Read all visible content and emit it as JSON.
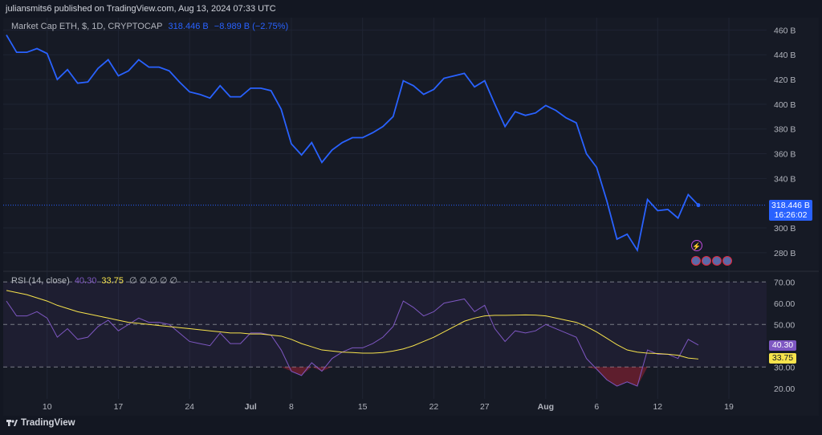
{
  "header": {
    "published": "juliansmits6 published on TradingView.com, Aug 13, 2024 07:33 UTC"
  },
  "legend": {
    "title": "Market Cap ETH, $, 1D, CRYPTOCAP",
    "value": "318.446 B",
    "change": "−8.989 B (−2.75%)"
  },
  "rsi_legend": {
    "title": "RSI (14, close)",
    "rsi": "40.30",
    "ma": "33.75",
    "na": "∅ ∅ ∅ ∅ ∅"
  },
  "price_tag": {
    "value": "318.446 B",
    "countdown": "16:26:02"
  },
  "rsi_tags": {
    "rsi": "40.30",
    "ma": "33.75"
  },
  "footer": {
    "brand": "TradingView"
  },
  "colors": {
    "price": "#2962ff",
    "rsi": "#7e57c2",
    "rsi_ma": "#f7e34c",
    "oversold_fill": "#e5283c"
  },
  "chart_data": [
    {
      "type": "line",
      "title": "Market Cap ETH, $, 1D, CRYPTOCAP",
      "ylim": [
        265,
        470
      ],
      "yticks": [
        "460 B",
        "440 B",
        "420 B",
        "400 B",
        "380 B",
        "360 B",
        "340 B",
        "300 B",
        "280 B"
      ],
      "xticks": [
        "10",
        "17",
        "24",
        "Jul",
        "8",
        "15",
        "22",
        "27",
        "Aug",
        "6",
        "12",
        "19"
      ],
      "series": [
        {
          "values": [
            456,
            442,
            442,
            445,
            441,
            420,
            428,
            417,
            418,
            429,
            436,
            423,
            427,
            436,
            430,
            430,
            427,
            418,
            410,
            408,
            405,
            415,
            406,
            406,
            413,
            413,
            411,
            396,
            368,
            359,
            369,
            353,
            363,
            369,
            373,
            373,
            377,
            382,
            390,
            419,
            415,
            408,
            412,
            421,
            423,
            425,
            414,
            419,
            400,
            382,
            394,
            391,
            393,
            399,
            395,
            389,
            385,
            360,
            349,
            322,
            291,
            295,
            282,
            323,
            314,
            315,
            308,
            327,
            318.446
          ]
        }
      ]
    },
    {
      "type": "line",
      "title": "RSI (14, close)",
      "ylim": [
        15,
        75
      ],
      "yticks": [
        "70.00",
        "60.00",
        "50.00",
        "40.00",
        "30.00",
        "20.00"
      ],
      "bands": [
        30,
        50,
        70
      ],
      "series": [
        {
          "name": "RSI",
          "values": [
            61,
            54,
            54,
            56,
            53,
            44,
            48,
            43,
            44,
            49,
            52,
            47,
            50,
            53,
            51,
            51,
            50,
            46,
            42,
            41,
            40,
            46,
            41,
            41,
            46,
            46,
            45,
            38,
            28,
            26,
            32,
            28,
            34,
            37,
            39,
            39,
            41,
            44,
            49,
            61,
            58,
            54,
            56,
            60,
            61,
            62,
            56,
            59,
            48,
            42,
            47,
            46,
            47,
            50,
            48,
            46,
            44,
            34,
            29,
            24,
            21,
            23,
            21,
            38,
            36,
            36,
            34,
            43,
            40.3
          ]
        },
        {
          "name": "RSI-based MA",
          "values": [
            66,
            65,
            64,
            62.5,
            61,
            59,
            57.5,
            56,
            55,
            54,
            53,
            52,
            51,
            50.5,
            50,
            49.5,
            49,
            48.5,
            48,
            47.5,
            47,
            46.5,
            46,
            46,
            45.5,
            45.5,
            45,
            44.5,
            43,
            41,
            39.5,
            38,
            37.5,
            37,
            36.8,
            36.5,
            36.5,
            36.8,
            37.5,
            38.5,
            40,
            42,
            44,
            46.5,
            49,
            51.5,
            53,
            54,
            54.3,
            54.3,
            54.4,
            54.5,
            54.4,
            54,
            53,
            52,
            51,
            49,
            46.5,
            43.5,
            40.5,
            38,
            37,
            36.5,
            36.3,
            36,
            35.5,
            34.2,
            33.75
          ]
        }
      ]
    }
  ]
}
